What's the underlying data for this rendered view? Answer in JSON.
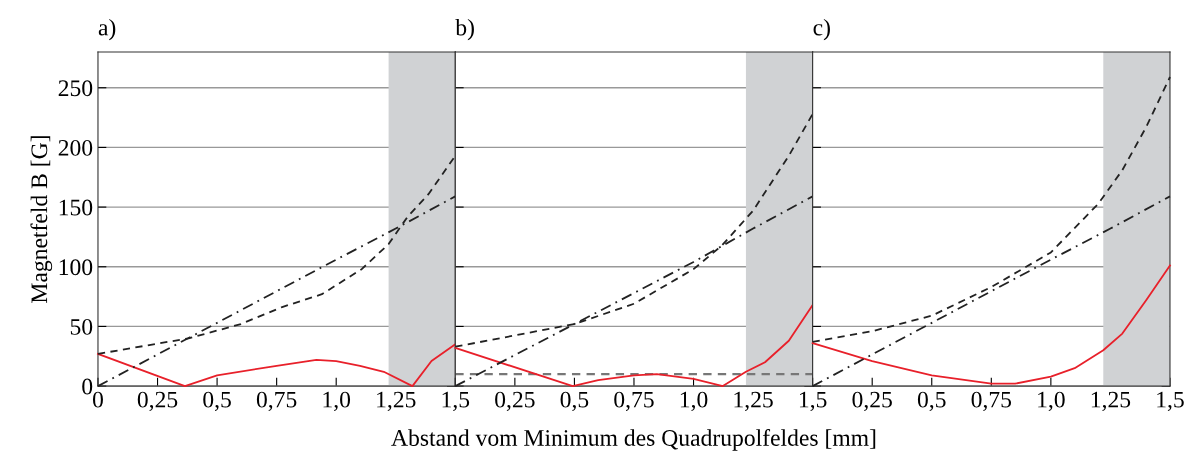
{
  "chart_data": [
    {
      "type": "line",
      "title": "a)",
      "ylabel": "Magnetfeld B [G]",
      "xlim": [
        0,
        1.5
      ],
      "ylim": [
        0,
        280
      ],
      "xticks": [
        {
          "value": 0,
          "label": "0"
        },
        {
          "value": 0.25,
          "label": "0,25"
        },
        {
          "value": 0.5,
          "label": "0,5"
        },
        {
          "value": 0.75,
          "label": "0,75"
        },
        {
          "value": 1.0,
          "label": "1,0"
        },
        {
          "value": 1.25,
          "label": "1,25"
        },
        {
          "value": 1.5,
          "label": "1,5"
        }
      ],
      "yticks": [
        0,
        50,
        100,
        150,
        200,
        250
      ],
      "grid": "y",
      "legend": false,
      "bands": [
        {
          "axis": "x",
          "from": 1.22,
          "to": 1.5,
          "color": "#d0d2d4"
        }
      ],
      "series": [
        {
          "color": "#e8202a",
          "line_style": "solid",
          "x": [
            0,
            0.365,
            0.5,
            0.75,
            0.917,
            1.0,
            1.1,
            1.2,
            1.32,
            1.4,
            1.5
          ],
          "values": [
            27,
            0,
            9,
            17,
            22,
            21,
            17,
            12,
            0,
            21,
            35
          ]
        },
        {
          "color": "#222222",
          "line_style": "dashed",
          "x": [
            0,
            0.38,
            0.6,
            0.77,
            0.94,
            1.107,
            1.22,
            1.3,
            1.388,
            1.5
          ],
          "values": [
            27,
            40,
            52,
            66,
            77,
            98,
            119,
            142,
            161,
            193
          ]
        },
        {
          "color": "#222222",
          "line_style": "dashdot",
          "x": [
            0,
            0.5,
            1.0,
            1.25,
            1.5
          ],
          "values": [
            0,
            53,
            106,
            132,
            159
          ]
        }
      ]
    },
    {
      "type": "line",
      "title": "b)",
      "xlabel": "Abstand vom Minimum des Quadrupolfeldes [mm]",
      "xlim": [
        0,
        1.5
      ],
      "ylim": [
        0,
        280
      ],
      "xticks": [
        {
          "value": 0,
          "label": null
        },
        {
          "value": 0.25,
          "label": "0,25"
        },
        {
          "value": 0.5,
          "label": "0,5"
        },
        {
          "value": 0.75,
          "label": "0,75"
        },
        {
          "value": 1.0,
          "label": "1,0"
        },
        {
          "value": 1.25,
          "label": "1,25"
        },
        {
          "value": 1.5,
          "label": "1,5"
        }
      ],
      "yticks": [
        0,
        50,
        100,
        150,
        200,
        250
      ],
      "grid": "y",
      "legend": false,
      "tick_labels": "x",
      "bands": [
        {
          "axis": "x",
          "from": 1.22,
          "to": 1.5,
          "color": "#d0d2d4"
        }
      ],
      "ref_lines": [
        {
          "axis": "y",
          "value": 10,
          "color": "#777777",
          "line_style": "dashed"
        }
      ],
      "series": [
        {
          "color": "#e8202a",
          "line_style": "solid",
          "x": [
            0,
            0.493,
            0.6,
            0.75,
            0.846,
            1.0,
            1.123,
            1.22,
            1.3,
            1.4,
            1.5
          ],
          "values": [
            32,
            0,
            5,
            9,
            10,
            6,
            0,
            12,
            20,
            38,
            68
          ]
        },
        {
          "color": "#222222",
          "line_style": "dashed",
          "x": [
            0,
            0.5,
            0.75,
            1.0,
            1.12,
            1.25,
            1.4,
            1.5
          ],
          "values": [
            33,
            52,
            69,
            98,
            118,
            147,
            193,
            228
          ]
        },
        {
          "color": "#222222",
          "line_style": "dashdot",
          "x": [
            0,
            0.5,
            1.0,
            1.25,
            1.5
          ],
          "values": [
            0,
            52,
            104,
            132,
            159
          ]
        }
      ]
    },
    {
      "type": "line",
      "title": "c)",
      "xlim": [
        0,
        1.5
      ],
      "ylim": [
        0,
        280
      ],
      "xticks": [
        {
          "value": 0,
          "label": null
        },
        {
          "value": 0.25,
          "label": "0,25"
        },
        {
          "value": 0.5,
          "label": "0,5"
        },
        {
          "value": 0.75,
          "label": "0,75"
        },
        {
          "value": 1.0,
          "label": "1,0"
        },
        {
          "value": 1.25,
          "label": "1,25"
        },
        {
          "value": 1.5,
          "label": "1,5"
        }
      ],
      "yticks": [
        0,
        50,
        100,
        150,
        200,
        250
      ],
      "grid": "y",
      "legend": false,
      "tick_labels": "x",
      "bands": [
        {
          "axis": "x",
          "from": 1.22,
          "to": 1.5,
          "color": "#d0d2d4"
        }
      ],
      "series": [
        {
          "color": "#e8202a",
          "line_style": "solid",
          "x": [
            0,
            0.25,
            0.5,
            0.75,
            0.85,
            1.0,
            1.1,
            1.22,
            1.3,
            1.4,
            1.5
          ],
          "values": [
            36,
            21,
            9,
            2,
            2,
            8,
            15,
            30,
            44,
            72,
            101
          ]
        },
        {
          "color": "#222222",
          "line_style": "dashed",
          "x": [
            0,
            0.25,
            0.5,
            0.75,
            1.0,
            1.2,
            1.3,
            1.4,
            1.5
          ],
          "values": [
            37,
            46,
            59,
            83,
            112,
            153,
            181,
            217,
            259
          ]
        },
        {
          "color": "#222222",
          "line_style": "dashdot",
          "x": [
            0,
            0.5,
            1.0,
            1.25,
            1.5
          ],
          "values": [
            0,
            53,
            106,
            132,
            159
          ]
        }
      ]
    }
  ]
}
